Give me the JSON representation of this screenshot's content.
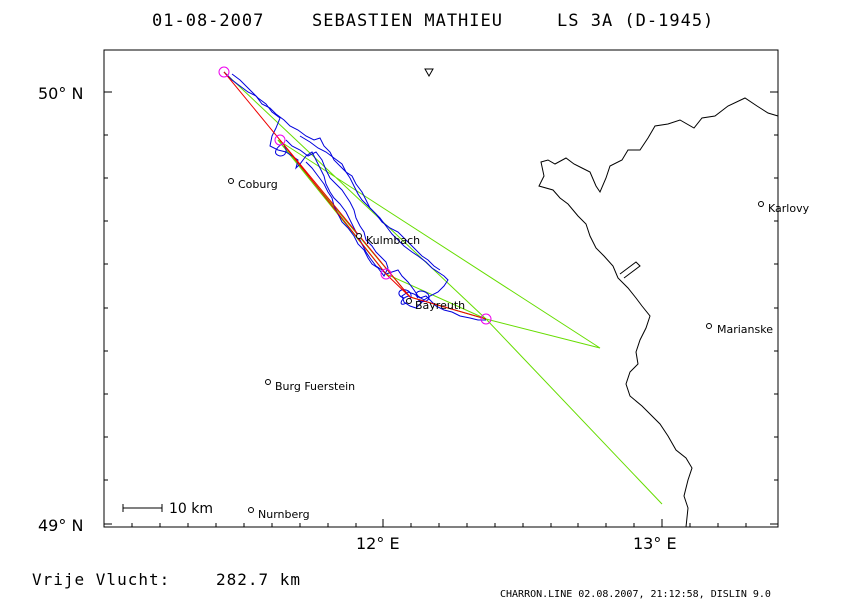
{
  "title": {
    "date": "01-08-2007",
    "pilot": "SEBASTIEN MATHIEU",
    "glider": "LS 3A (D-1945)"
  },
  "axes": {
    "lat_top": "50° N",
    "lat_bottom": "49° N",
    "lon_left": "12° E",
    "lon_right": "13° E"
  },
  "towns": [
    {
      "name": "Coburg"
    },
    {
      "name": "Kulmbach"
    },
    {
      "name": "Bayreuth"
    },
    {
      "name": "Karlovy"
    },
    {
      "name": "Marianske"
    },
    {
      "name": "Burg Fuerstein"
    },
    {
      "name": "Nurnberg"
    }
  ],
  "scale_bar": {
    "label": "10 km"
  },
  "distance": {
    "label": "Vrije Vlucht:",
    "value": "282.7 km"
  },
  "footer": "CHARRON.LINE 02.08.2007, 21:12:58, DISLIN 9.0",
  "colors": {
    "track": "#0000dd",
    "task_legs": "#66dd00",
    "optimized_legs": "#ee0000",
    "turnpoints": "#ee00ee",
    "border": "#000000"
  }
}
